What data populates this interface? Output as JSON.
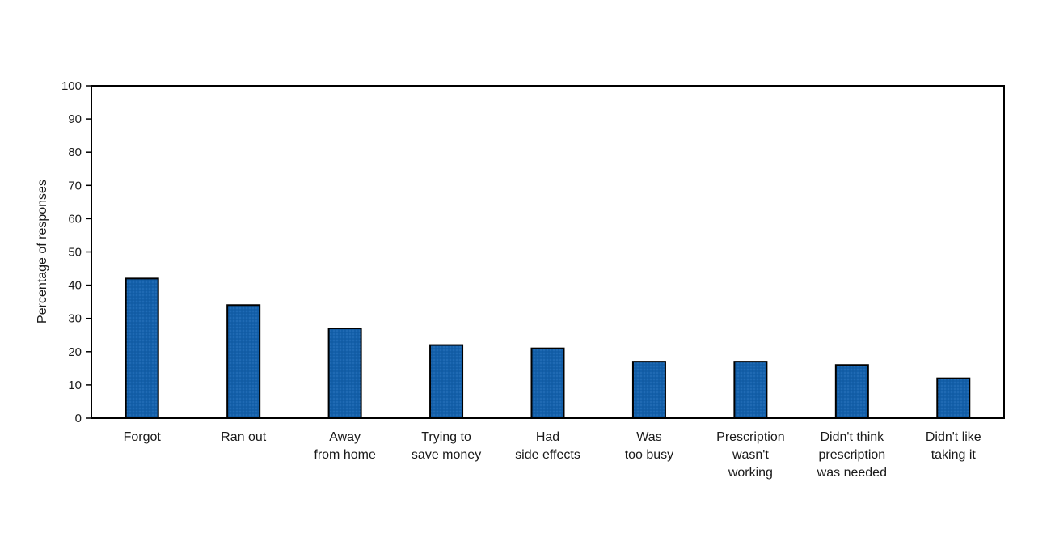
{
  "chart_data": {
    "type": "bar",
    "title": "",
    "xlabel": "",
    "ylabel": "Percentage of responses",
    "ylim": [
      0,
      100
    ],
    "yticks": [
      0,
      10,
      20,
      30,
      40,
      50,
      60,
      70,
      80,
      90,
      100
    ],
    "categories": [
      [
        "Forgot"
      ],
      [
        "Ran out"
      ],
      [
        "Away",
        "from home"
      ],
      [
        "Trying to",
        "save money"
      ],
      [
        "Had",
        "side effects"
      ],
      [
        "Was",
        "too busy"
      ],
      [
        "Prescription",
        "wasn't",
        "working"
      ],
      [
        "Didn't think",
        "prescription",
        "was needed"
      ],
      [
        "Didn't like",
        "taking it"
      ]
    ],
    "values": [
      42,
      34,
      27,
      22,
      21,
      17,
      17,
      16,
      12
    ],
    "grid": false,
    "bar_color": "#1460aa",
    "bar_outline_color": "#000000"
  }
}
